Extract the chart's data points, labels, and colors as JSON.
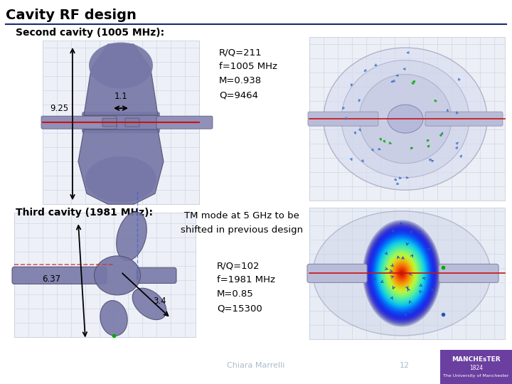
{
  "title": "Cavity RF design",
  "bg_color": "#ffffff",
  "title_color": "#000000",
  "header_line_color": "#1a2a6e",
  "section1_title": "Second cavity (1005 MHz):",
  "section2_title": "Third cavity (1981 MHz):",
  "cavity1_dim1": "9.25",
  "cavity1_dim2": "1.1",
  "cavity1_specs": "R/Q=211\nf=1005 MHz\nM=0.938\nQ=9464",
  "cavity2_dim1": "6.37",
  "cavity2_dim2": "3.4",
  "cavity2_note": "TM mode at 5 GHz to be\nshifted in previous design",
  "cavity2_specs": "R/Q=102\nf=1981 MHz\nM=0.85\nQ=15300",
  "footer_bg": "#3c5aa6",
  "footer_right_bg": "#6b3fa0",
  "footer_text": "Chiara Marrelli",
  "footer_page": "12",
  "footer_org1": "MANCHEsTER",
  "footer_org2": "1824",
  "footer_org3": "The University of Manchester",
  "cavity_color": "#7878a8",
  "cavity_edge": "#505070",
  "grid_color": "#c8d0e0",
  "sim1_bg": "#e8eaf2",
  "sim2_bg": "#dde0ee"
}
